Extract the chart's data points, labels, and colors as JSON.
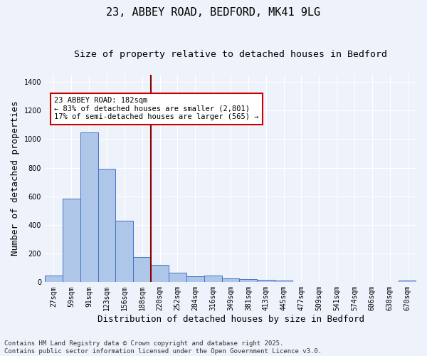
{
  "title": "23, ABBEY ROAD, BEDFORD, MK41 9LG",
  "subtitle": "Size of property relative to detached houses in Bedford",
  "xlabel": "Distribution of detached houses by size in Bedford",
  "ylabel": "Number of detached properties",
  "categories": [
    "27sqm",
    "59sqm",
    "91sqm",
    "123sqm",
    "156sqm",
    "188sqm",
    "220sqm",
    "252sqm",
    "284sqm",
    "316sqm",
    "349sqm",
    "381sqm",
    "413sqm",
    "445sqm",
    "477sqm",
    "509sqm",
    "541sqm",
    "574sqm",
    "606sqm",
    "638sqm",
    "670sqm"
  ],
  "values": [
    47,
    585,
    1047,
    795,
    430,
    178,
    122,
    65,
    40,
    47,
    25,
    22,
    16,
    10,
    0,
    0,
    0,
    0,
    0,
    0,
    10
  ],
  "bar_color": "#aec6e8",
  "bar_edge_color": "#4472c4",
  "background_color": "#eef2fa",
  "vline_x": 5.5,
  "vline_color": "#8b0000",
  "annotation_text": "23 ABBEY ROAD: 182sqm\n← 83% of detached houses are smaller (2,801)\n17% of semi-detached houses are larger (565) →",
  "annotation_box_color": "#ffffff",
  "annotation_box_edge": "#cc0000",
  "ylim": [
    0,
    1450
  ],
  "yticks": [
    0,
    200,
    400,
    600,
    800,
    1000,
    1200,
    1400
  ],
  "footnote": "Contains HM Land Registry data © Crown copyright and database right 2025.\nContains public sector information licensed under the Open Government Licence v3.0.",
  "title_fontsize": 11,
  "subtitle_fontsize": 9.5,
  "tick_fontsize": 7,
  "ylabel_fontsize": 9,
  "xlabel_fontsize": 9,
  "annotation_fontsize": 7.5,
  "footnote_fontsize": 6.5
}
